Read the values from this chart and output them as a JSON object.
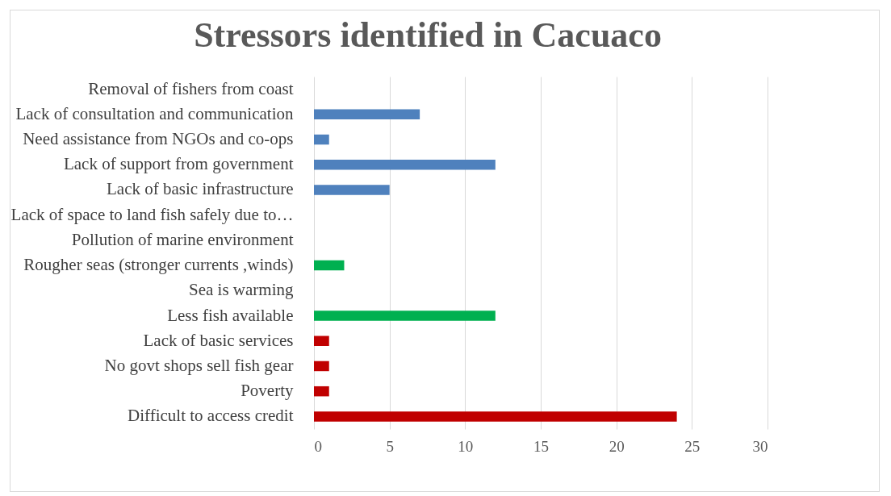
{
  "chart_data": {
    "type": "bar",
    "orientation": "horizontal",
    "title": "Stressors identified in Cacuaco",
    "categories": [
      "Removal of fishers from coast",
      "Lack of consultation and communication",
      "Need assistance from NGOs and co-ops",
      "Lack of support from government",
      "Lack of basic infrastructure",
      "Lack of space to land fish safely due to…",
      "Pollution of marine environment",
      "Rougher seas (stronger currents ,winds)",
      "Sea is warming",
      "Less fish available",
      "Lack of basic services",
      "No govt shops sell fish gear",
      "Poverty",
      "Difficult to access credit"
    ],
    "values": [
      0,
      7,
      1,
      12,
      5,
      0,
      0,
      2,
      0,
      12,
      1,
      1,
      1,
      24
    ],
    "colors": [
      "#4f81bd",
      "#4f81bd",
      "#4f81bd",
      "#4f81bd",
      "#4f81bd",
      "#4f81bd",
      "#00b050",
      "#00b050",
      "#00b050",
      "#00b050",
      "#c00000",
      "#c00000",
      "#c00000",
      "#c00000"
    ],
    "xlim": [
      0,
      30
    ],
    "xticks": [
      0,
      5,
      10,
      15,
      20,
      25,
      30
    ],
    "grid": "x"
  }
}
